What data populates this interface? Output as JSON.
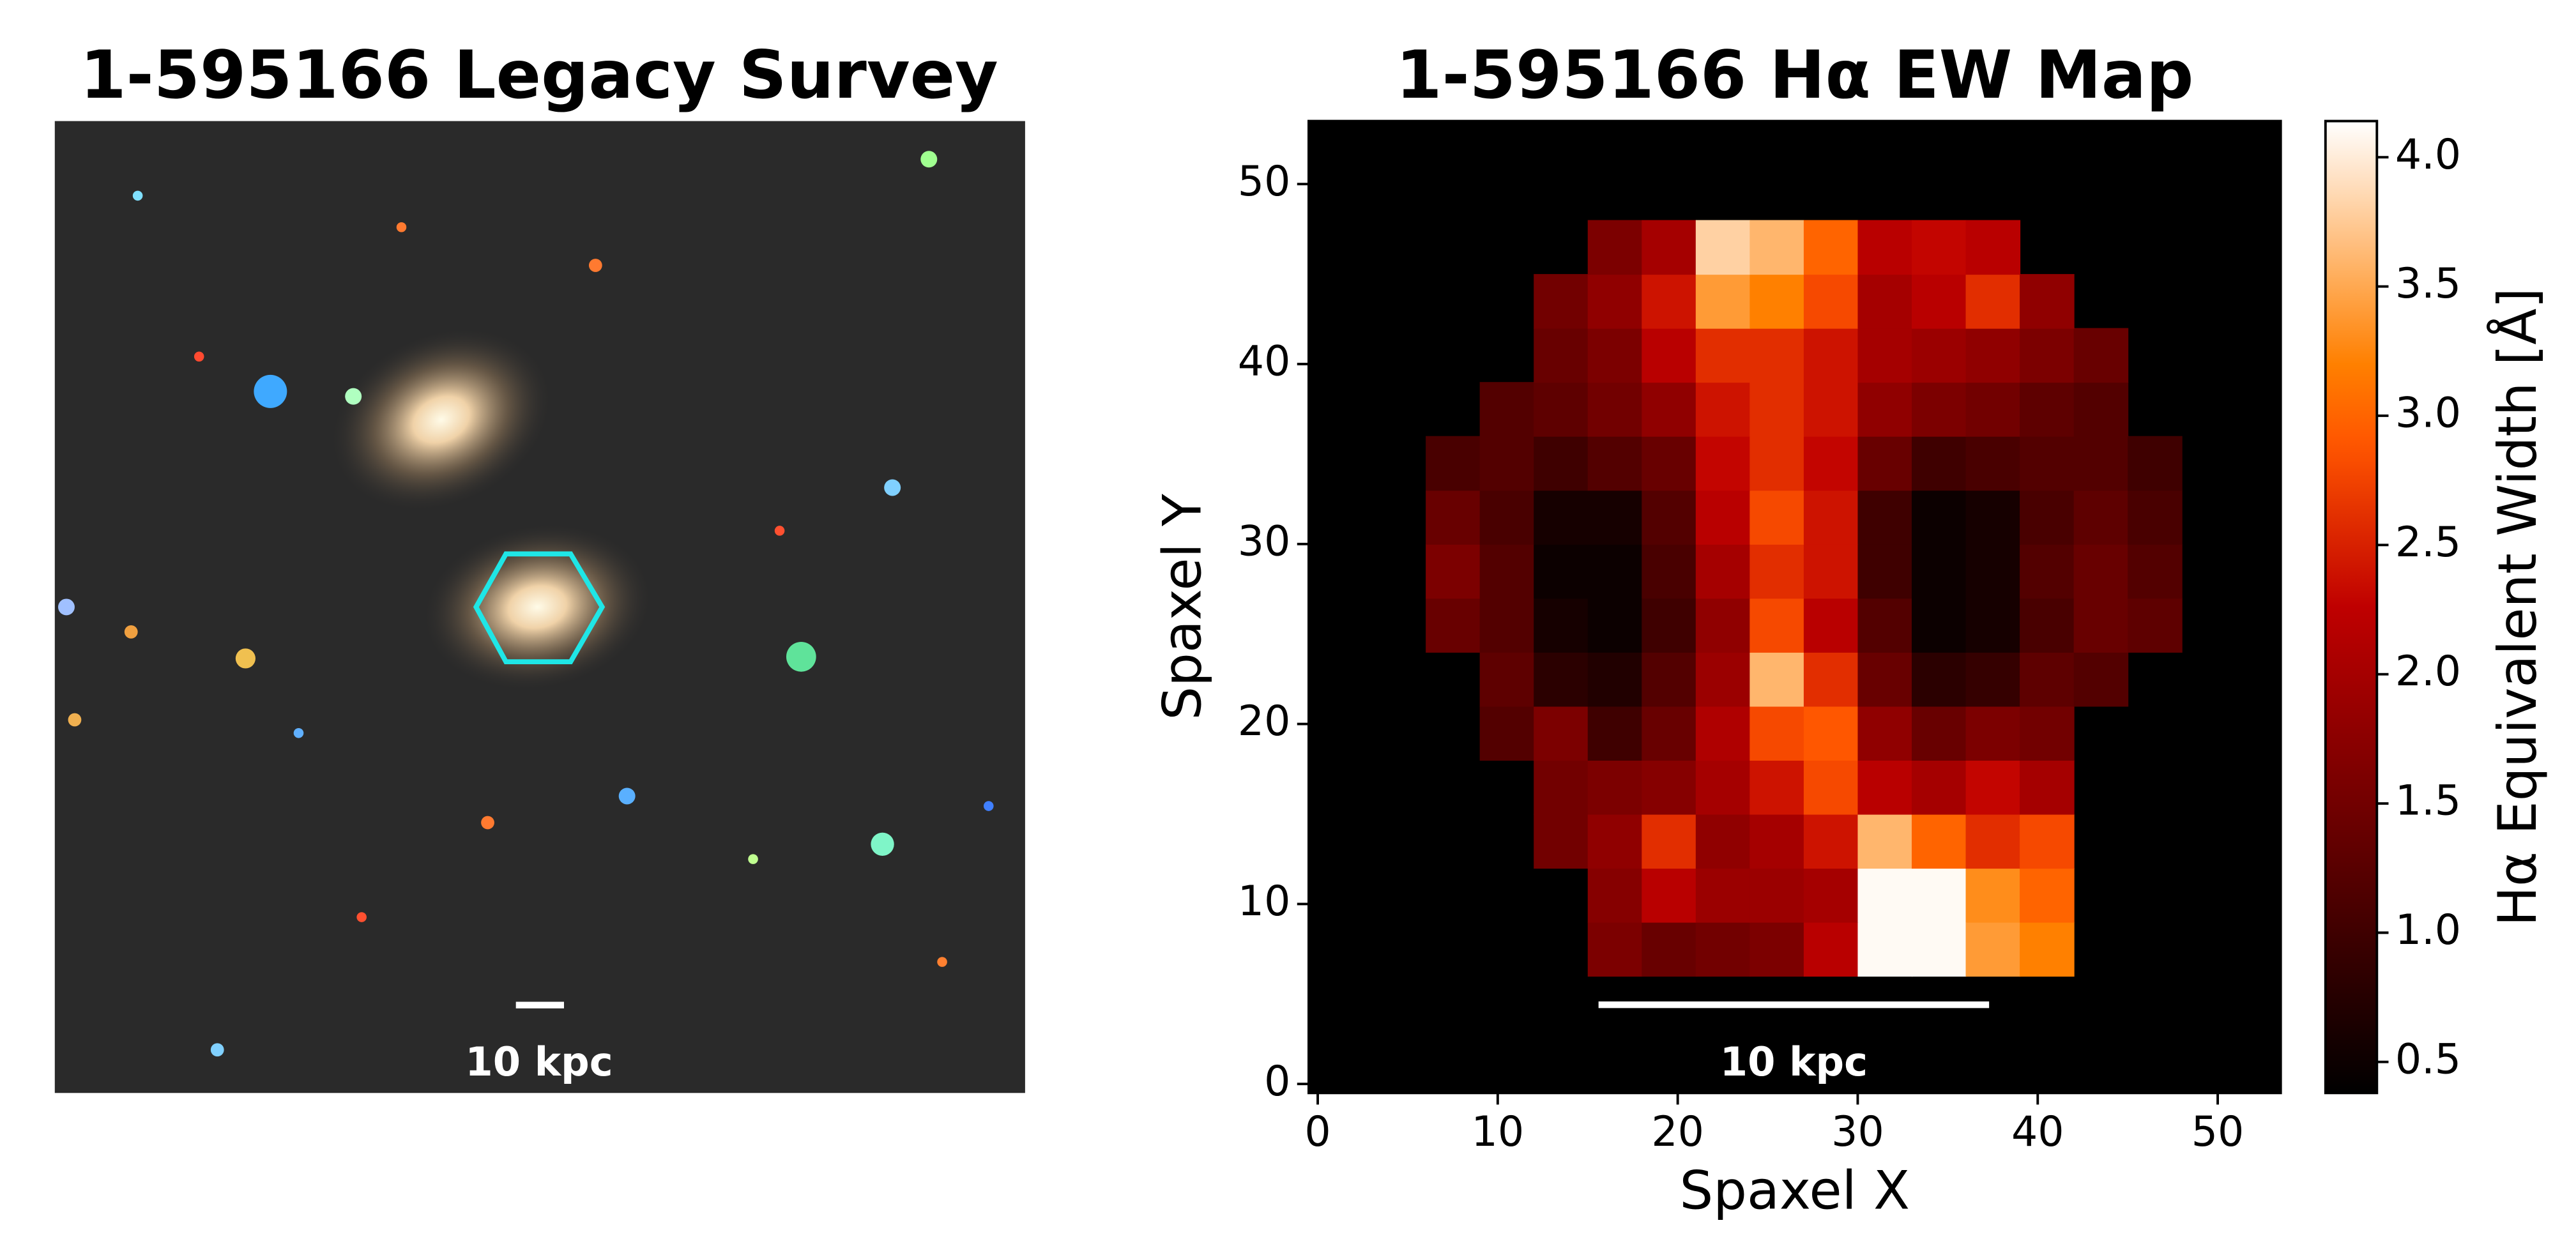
{
  "chart_data": [
    {
      "type": "image",
      "title": "1-595166 Legacy Survey",
      "scalebar_label": "10 kpc"
    },
    {
      "type": "heatmap",
      "title": "1-595166 Hα EW Map",
      "xlabel": "Spaxel X",
      "ylabel": "Spaxel Y",
      "colorbar_label": "Hα Equivalent Width [Å]",
      "xlim": [
        -0.5,
        53.5
      ],
      "ylim": [
        -0.5,
        53.5
      ],
      "xticks": [
        0,
        10,
        20,
        30,
        40,
        50
      ],
      "yticks": [
        0,
        10,
        20,
        30,
        40,
        50
      ],
      "colormap": "gist_heat",
      "background": "#000000",
      "clim": [
        0.38,
        4.14
      ],
      "cticks": [
        0.5,
        {
          "value": 1.0,
          "label": "1.0"
        },
        1.5,
        {
          "value": 2.0,
          "label": "2.0"
        },
        2.5,
        {
          "value": 3.0,
          "label": "3.0"
        },
        3.5,
        {
          "value": 4.0,
          "label": "4.0"
        }
      ],
      "xbins": [
        6,
        9,
        12,
        15,
        18,
        21,
        24,
        27,
        30,
        33,
        36,
        39,
        42,
        45,
        48
      ],
      "ybins": [
        6,
        9,
        12,
        15,
        18,
        21,
        24,
        27,
        30,
        33,
        36,
        39,
        42,
        45,
        48
      ],
      "z": [
        [
          null,
          null,
          null,
          1.6,
          1.4,
          1.5,
          1.6,
          2.2,
          4.1,
          4.1,
          3.4,
          3.2,
          null,
          null
        ],
        [
          null,
          null,
          null,
          1.7,
          2.2,
          1.9,
          1.9,
          2.0,
          4.1,
          4.1,
          3.3,
          3.0,
          null,
          null
        ],
        [
          null,
          null,
          1.5,
          1.8,
          2.6,
          1.8,
          2.0,
          2.4,
          3.6,
          3.0,
          2.6,
          2.8,
          null,
          null
        ],
        [
          null,
          null,
          1.5,
          1.6,
          1.7,
          2.0,
          2.4,
          2.8,
          2.2,
          2.0,
          2.3,
          2.0,
          null,
          null
        ],
        [
          null,
          1.2,
          1.6,
          1.0,
          1.4,
          2.1,
          2.8,
          2.9,
          1.8,
          1.4,
          1.6,
          1.5,
          null,
          null
        ],
        [
          null,
          1.3,
          0.8,
          0.7,
          1.2,
          1.9,
          3.6,
          2.6,
          1.4,
          0.8,
          0.9,
          1.3,
          1.2,
          null
        ],
        [
          1.4,
          1.2,
          0.6,
          0.5,
          1.0,
          1.8,
          2.8,
          2.2,
          1.2,
          0.5,
          0.6,
          1.1,
          1.4,
          1.3
        ],
        [
          1.6,
          1.2,
          0.5,
          0.5,
          1.1,
          2.0,
          2.6,
          2.4,
          1.0,
          0.5,
          0.6,
          1.2,
          1.4,
          1.2
        ],
        [
          1.4,
          1.1,
          0.6,
          0.6,
          1.2,
          2.2,
          2.8,
          2.4,
          1.0,
          0.5,
          0.6,
          1.1,
          1.3,
          1.1
        ],
        [
          1.1,
          1.2,
          1.0,
          1.2,
          1.4,
          2.3,
          2.6,
          2.3,
          1.4,
          1.0,
          1.1,
          1.2,
          1.2,
          1.0
        ],
        [
          null,
          1.2,
          1.3,
          1.5,
          1.8,
          2.4,
          2.6,
          2.4,
          1.8,
          1.6,
          1.5,
          1.3,
          1.2,
          null
        ],
        [
          null,
          null,
          1.4,
          1.6,
          2.2,
          2.6,
          2.6,
          2.4,
          2.0,
          1.9,
          1.8,
          1.6,
          1.4,
          null
        ],
        [
          null,
          null,
          1.5,
          1.8,
          2.4,
          3.4,
          3.2,
          2.8,
          2.0,
          2.2,
          2.6,
          1.8,
          null,
          null
        ],
        [
          null,
          null,
          null,
          1.6,
          2.0,
          3.8,
          3.6,
          3.0,
          2.2,
          2.3,
          2.2,
          null,
          null,
          null
        ]
      ],
      "scalebar": {
        "x": [
          15.6,
          37.3
        ],
        "y": 4.4,
        "label": "10 kpc"
      }
    }
  ]
}
